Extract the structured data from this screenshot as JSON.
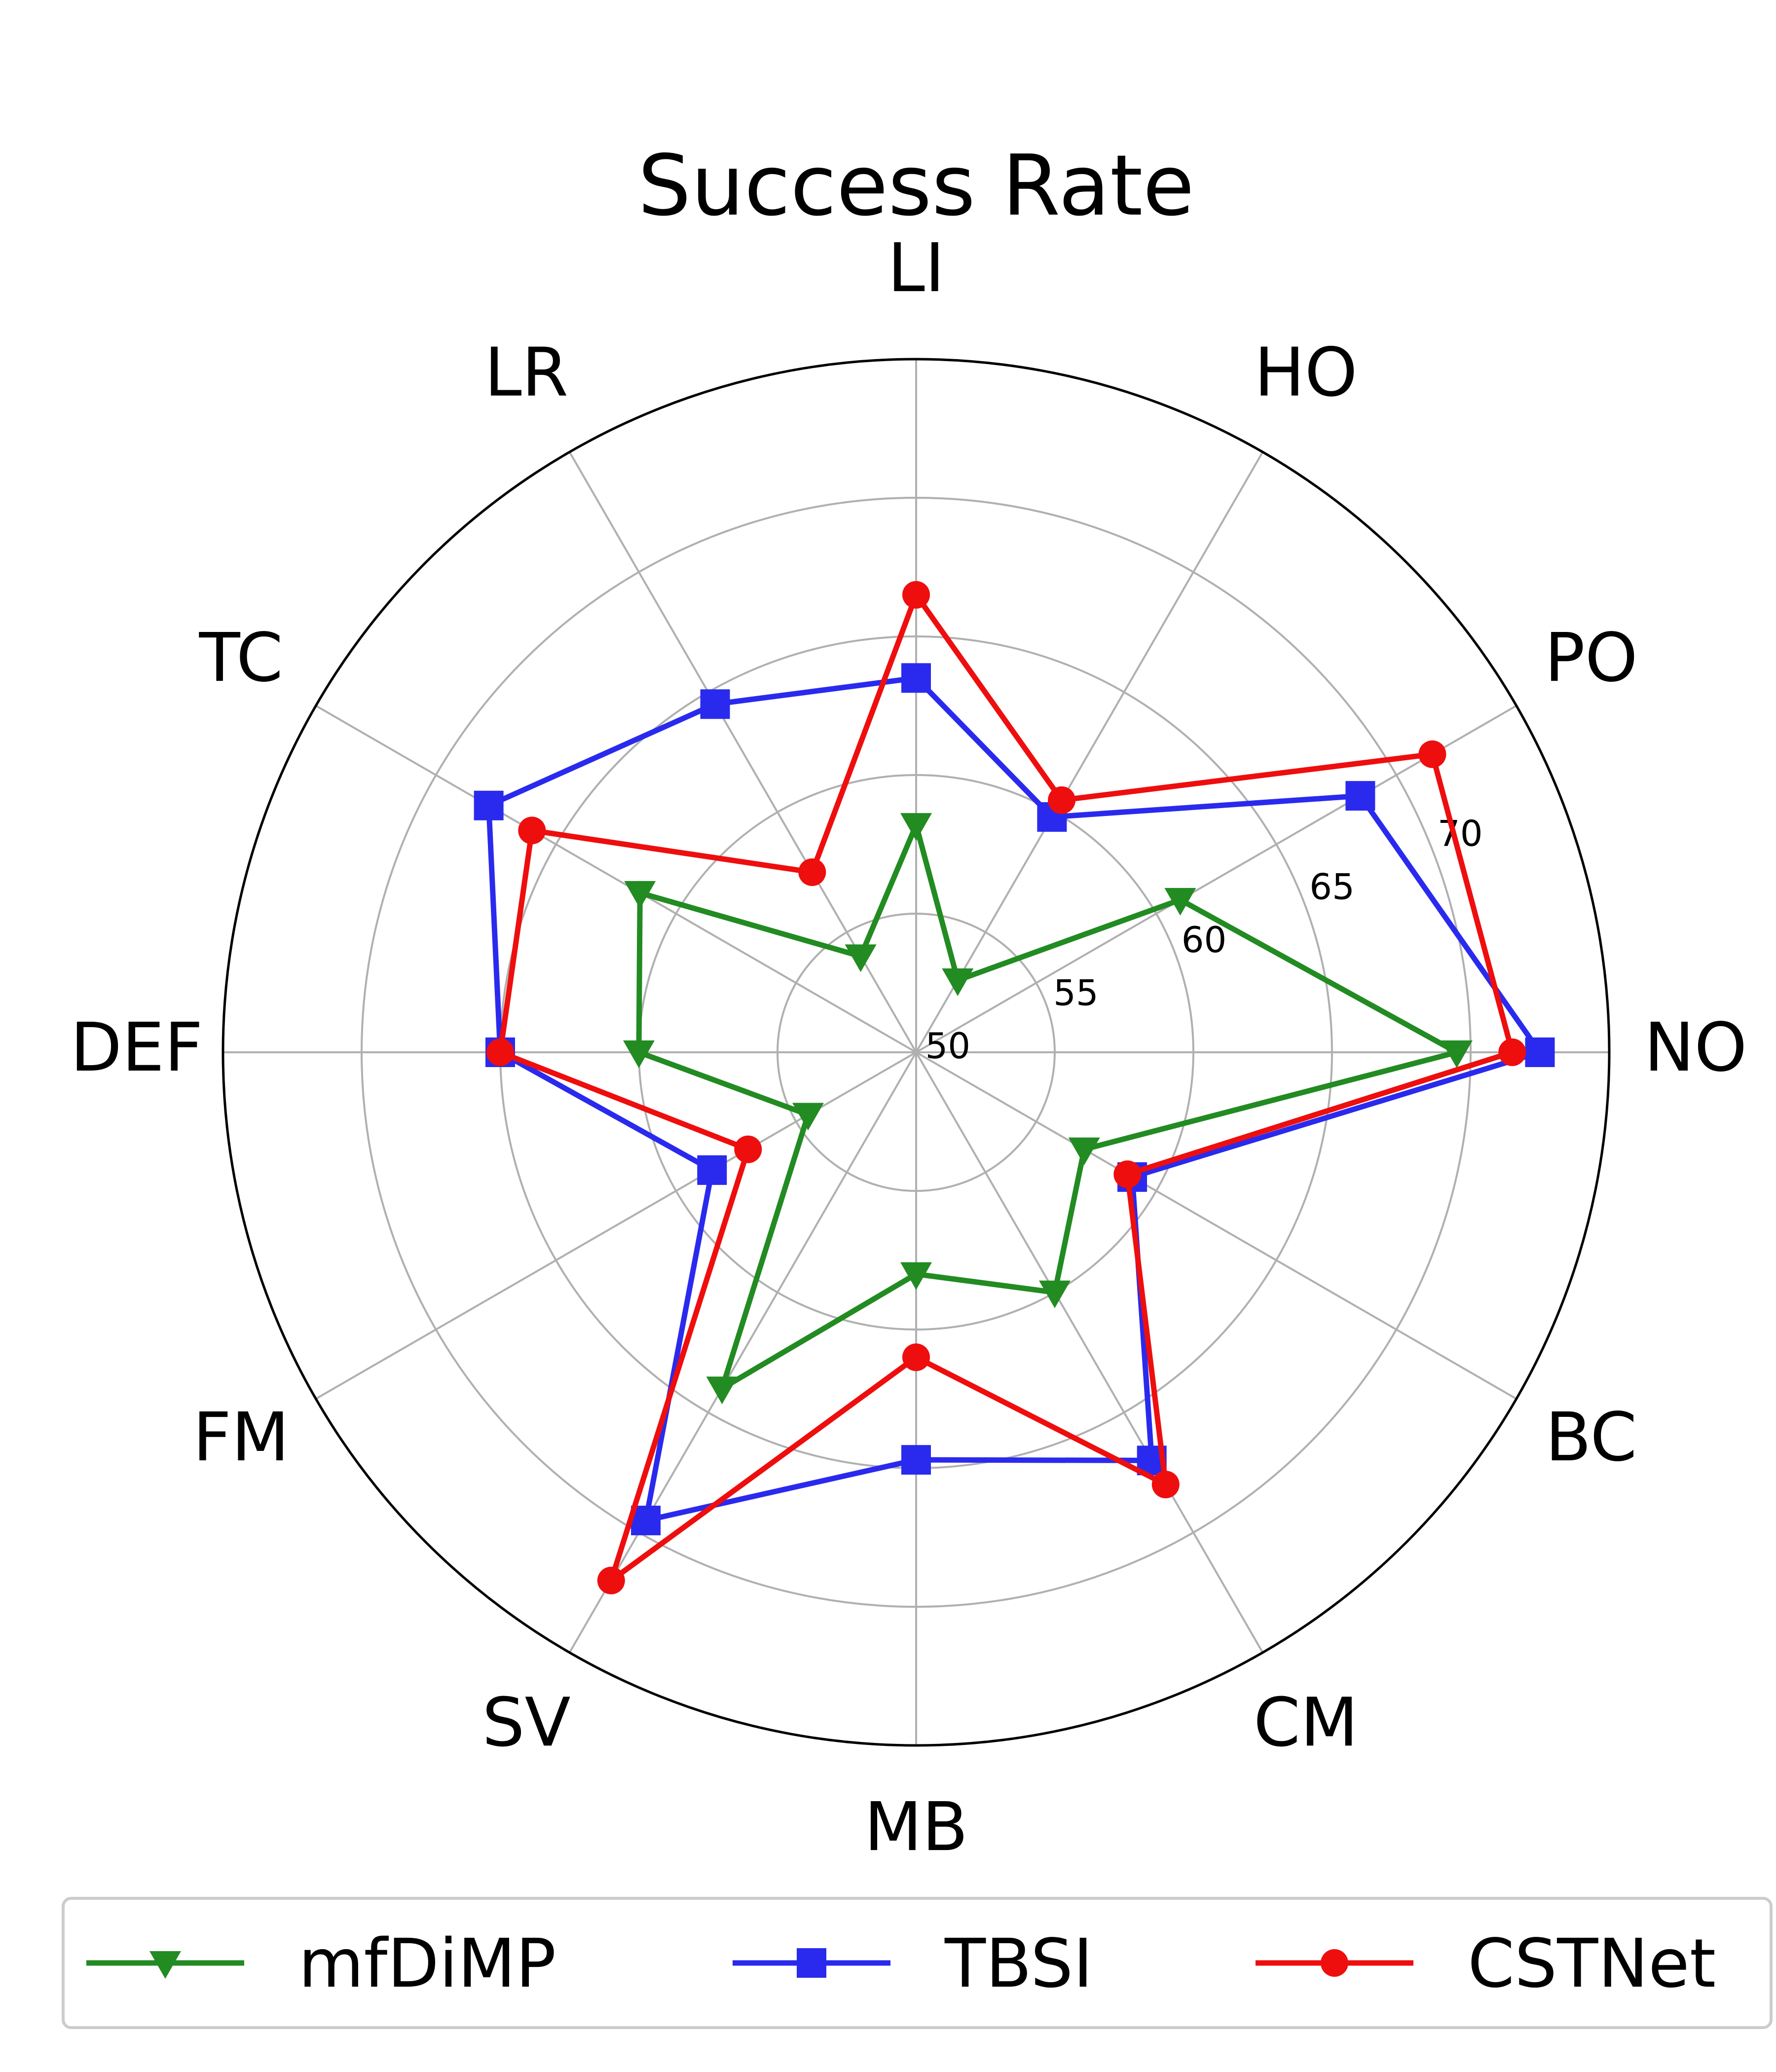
{
  "chart_data": {
    "type": "radar",
    "title": "Success Rate",
    "categories": [
      "NO",
      "PO",
      "HO",
      "LI",
      "LR",
      "TC",
      "DEF",
      "FM",
      "SV",
      "MB",
      "CM",
      "BC"
    ],
    "rlim": [
      50,
      75
    ],
    "rticks": [
      50,
      55,
      60,
      65,
      70
    ],
    "grid": true,
    "legend_position": "bottom",
    "series": [
      {
        "name": "mfDiMP",
        "color": "#228b22",
        "marker": "triangle-down",
        "values": [
          69.5,
          61.0,
          53.0,
          58.2,
          54.0,
          61.5,
          60.0,
          54.5,
          64.0,
          58.0,
          60.0,
          57.0
        ]
      },
      {
        "name": "TBSI",
        "color": "#2a2aee",
        "marker": "square",
        "values": [
          72.5,
          68.5,
          59.8,
          63.5,
          64.5,
          67.8,
          65.0,
          58.5,
          69.5,
          64.7,
          67.0,
          59.0
        ]
      },
      {
        "name": "CSTNet",
        "color": "#ee0e0e",
        "marker": "circle",
        "values": [
          71.5,
          71.5,
          60.5,
          66.5,
          57.5,
          66.0,
          65.0,
          57.0,
          72.0,
          61.0,
          68.0,
          58.8
        ]
      }
    ]
  }
}
